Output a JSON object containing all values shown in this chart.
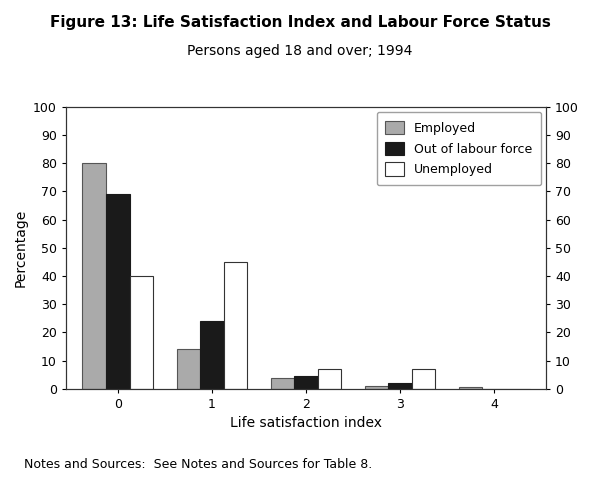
{
  "title": "Figure 13: Life Satisfaction Index and Labour Force Status",
  "subtitle": "Persons aged 18 and over; 1994",
  "xlabel": "Life satisfaction index",
  "ylabel": "Percentage",
  "categories": [
    0,
    1,
    2,
    3,
    4
  ],
  "series": {
    "Employed": [
      80,
      14,
      4,
      1,
      0.5
    ],
    "Out of labour force": [
      69,
      24,
      4.5,
      2,
      0
    ],
    "Unemployed": [
      40,
      45,
      7,
      7,
      0
    ]
  },
  "colors": {
    "Employed": "#aaaaaa",
    "Out of labour force": "#1a1a1a",
    "Unemployed": "#ffffff"
  },
  "edge_colors": {
    "Employed": "#555555",
    "Out of labour force": "#1a1a1a",
    "Unemployed": "#333333"
  },
  "ylim": [
    0,
    100
  ],
  "yticks": [
    0,
    10,
    20,
    30,
    40,
    50,
    60,
    70,
    80,
    90,
    100
  ],
  "bar_width": 0.25,
  "note": "Notes and Sources:  See Notes and Sources for Table 8.",
  "background_color": "#ffffff",
  "title_fontsize": 11,
  "subtitle_fontsize": 10,
  "axis_label_fontsize": 10,
  "tick_fontsize": 9,
  "legend_fontsize": 9,
  "note_fontsize": 9
}
